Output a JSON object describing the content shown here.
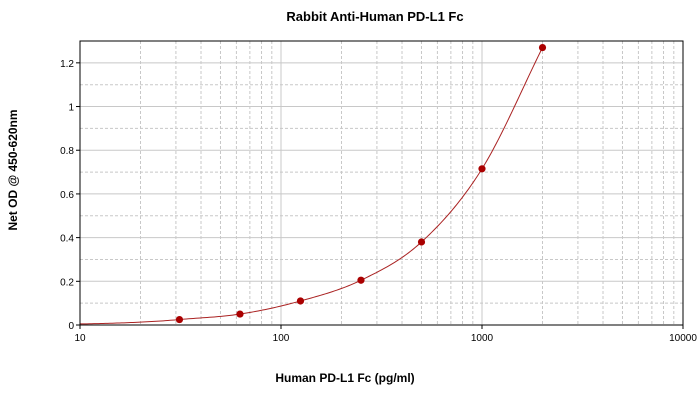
{
  "chart_data": {
    "type": "scatter",
    "title": "Rabbit Anti-Human PD-L1 Fc",
    "xlabel": "Human PD-L1 Fc (pg/ml)",
    "ylabel": "Net OD @ 450-620nm",
    "x_scale": "log",
    "xlim": [
      10,
      10000
    ],
    "ylim": [
      0,
      1.3
    ],
    "x_ticks": [
      "10",
      "100",
      "1000",
      "10000"
    ],
    "x_tick_values": [
      10,
      100,
      1000,
      10000
    ],
    "y_ticks": [
      "0",
      "0.2",
      "0.4",
      "0.6",
      "0.8",
      "1",
      "1.2"
    ],
    "y_tick_values": [
      0,
      0.2,
      0.4,
      0.6,
      0.8,
      1.0,
      1.2
    ],
    "grid": true,
    "series": [
      {
        "x": [
          31.25,
          62.5,
          125,
          250,
          500,
          1000,
          2000
        ],
        "y": [
          0.025,
          0.05,
          0.11,
          0.205,
          0.38,
          0.715,
          1.27
        ],
        "color": "#aa0000",
        "fit_line_color": "#aa2222"
      }
    ]
  }
}
